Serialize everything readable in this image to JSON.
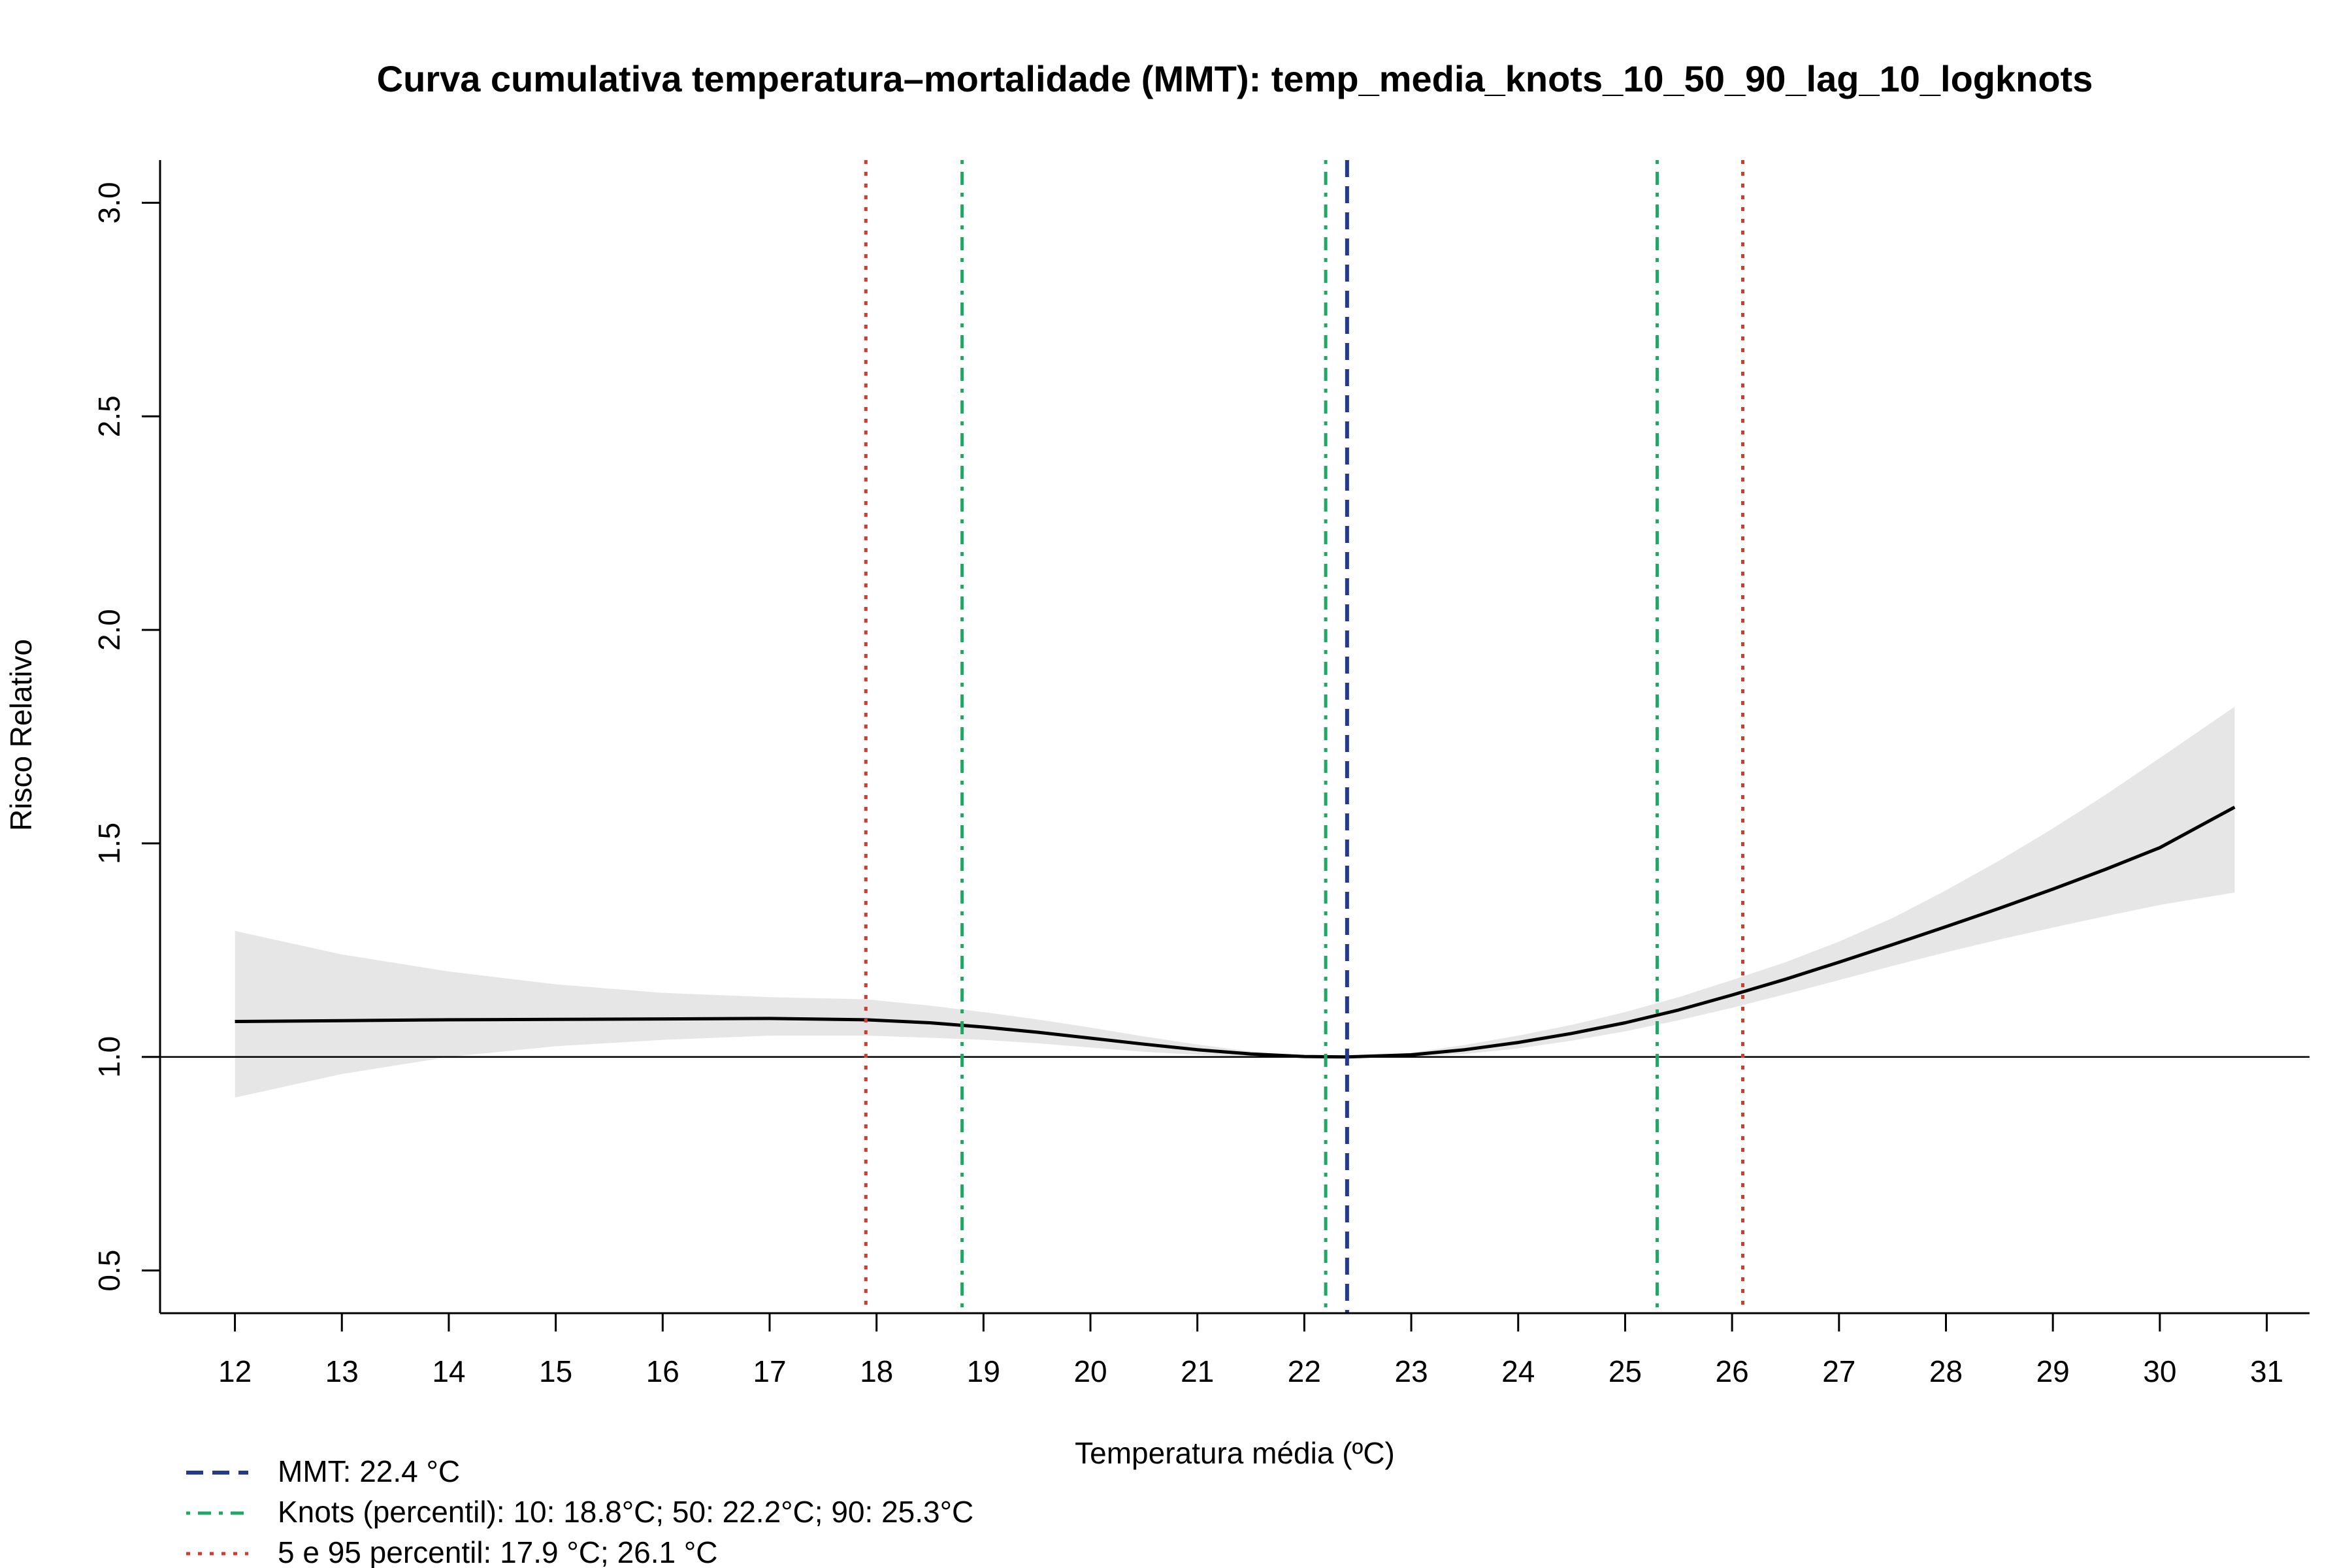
{
  "chart_data": {
    "type": "line",
    "title": "Curva cumulativa temperatura–mortalidade (MMT): temp_media_knots_10_50_90_lag_10_logknots",
    "xlabel": "Temperatura média (ºC)",
    "ylabel": "Risco Relativo",
    "xlim": [
      11.3,
      31.4
    ],
    "ylim": [
      0.4,
      3.1
    ],
    "x_ticks": [
      12,
      13,
      14,
      15,
      16,
      17,
      18,
      19,
      20,
      21,
      22,
      23,
      24,
      25,
      26,
      27,
      28,
      29,
      30,
      31
    ],
    "x_tick_labels": [
      "12",
      "13",
      "14",
      "15",
      "16",
      "17",
      "18",
      "19",
      "20",
      "21",
      "22",
      "23",
      "24",
      "25",
      "26",
      "27",
      "28",
      "29",
      "30",
      "31"
    ],
    "y_ticks": [
      0.5,
      1.0,
      1.5,
      2.0,
      2.5,
      3.0
    ],
    "y_tick_labels": [
      "0.5",
      "1.0",
      "1.5",
      "2.0",
      "2.5",
      "3.0"
    ],
    "reference_line": 1.0,
    "grid": false,
    "series": [
      {
        "color": "#000000",
        "x": [
          12,
          13,
          14,
          15,
          16,
          17,
          17.9,
          18.5,
          19,
          19.5,
          20,
          20.5,
          21,
          21.5,
          22,
          22.4,
          23,
          23.5,
          24,
          24.5,
          25,
          25.5,
          26,
          26.5,
          27,
          27.5,
          28,
          28.5,
          29,
          29.5,
          30,
          30.7
        ],
        "y": [
          1.083,
          1.085,
          1.087,
          1.088,
          1.089,
          1.09,
          1.087,
          1.08,
          1.07,
          1.058,
          1.044,
          1.03,
          1.017,
          1.007,
          1.001,
          1.0,
          1.005,
          1.017,
          1.034,
          1.055,
          1.08,
          1.11,
          1.145,
          1.182,
          1.222,
          1.263,
          1.305,
          1.348,
          1.393,
          1.44,
          1.49,
          1.585
        ],
        "ci_low": [
          0.905,
          0.96,
          1.0,
          1.025,
          1.04,
          1.05,
          1.05,
          1.045,
          1.04,
          1.032,
          1.022,
          1.012,
          1.005,
          1.001,
          1.0,
          1.0,
          1.001,
          1.007,
          1.02,
          1.038,
          1.06,
          1.086,
          1.115,
          1.147,
          1.18,
          1.213,
          1.245,
          1.275,
          1.303,
          1.33,
          1.356,
          1.385
        ],
        "ci_high": [
          1.295,
          1.24,
          1.2,
          1.17,
          1.15,
          1.14,
          1.135,
          1.12,
          1.105,
          1.088,
          1.069,
          1.048,
          1.029,
          1.013,
          1.003,
          1.0,
          1.01,
          1.028,
          1.05,
          1.075,
          1.105,
          1.14,
          1.18,
          1.222,
          1.27,
          1.325,
          1.39,
          1.46,
          1.535,
          1.615,
          1.7,
          1.82
        ]
      }
    ],
    "vlines": [
      {
        "x": 17.9,
        "color": "#d73a2a",
        "style": "dotted"
      },
      {
        "x": 18.8,
        "color": "#1fa765",
        "style": "dashdot"
      },
      {
        "x": 22.2,
        "color": "#1fa765",
        "style": "dashdot"
      },
      {
        "x": 22.4,
        "color": "#233a8f",
        "style": "dashed"
      },
      {
        "x": 25.3,
        "color": "#1fa765",
        "style": "dashdot"
      },
      {
        "x": 26.1,
        "color": "#d73a2a",
        "style": "dotted"
      }
    ],
    "legend": {
      "placement": "bottom-left",
      "entries": [
        {
          "label": "MMT: 22.4 °C",
          "color": "#233a8f",
          "style": "dashed"
        },
        {
          "label": "Knots (percentil): 10: 18.8°C; 50: 22.2°C; 90: 25.3°C",
          "color": "#1fa765",
          "style": "dashdot"
        },
        {
          "label": "5 e 95 percentil: 17.9 °C; 26.1 °C",
          "color": "#d73a2a",
          "style": "dotted"
        }
      ]
    },
    "ci_color": "#e6e6e6"
  }
}
